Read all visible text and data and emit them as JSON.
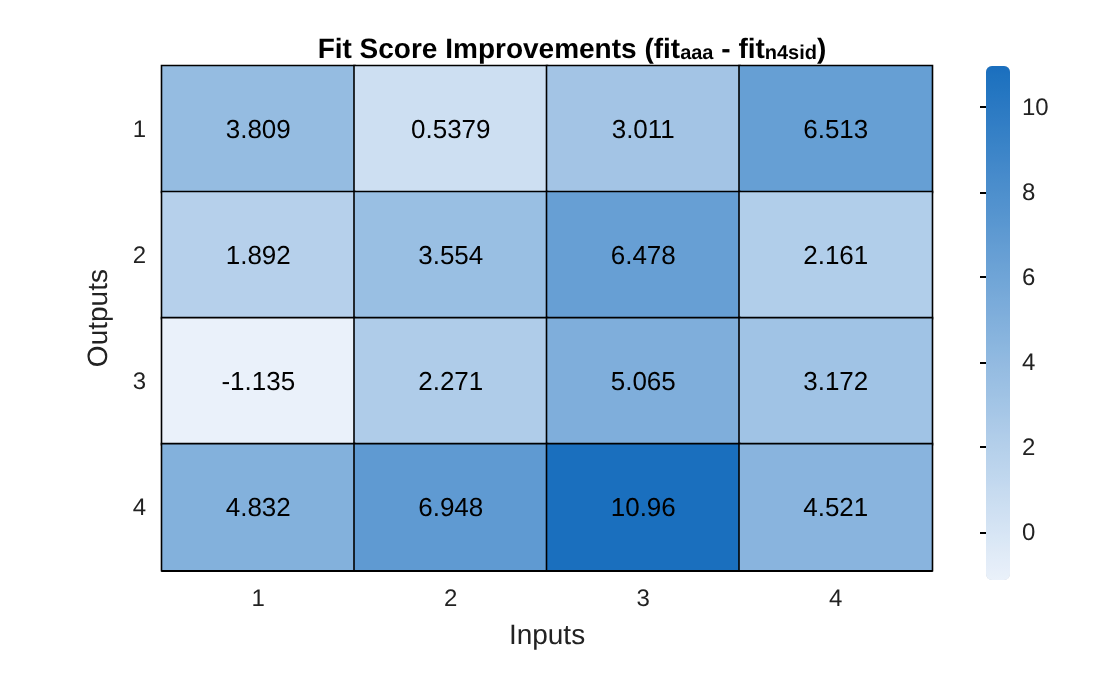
{
  "chart_data": {
    "type": "heatmap",
    "title": "Fit Score Improvements (fit$_{aaa}$ - fit$_{n4sid}$)",
    "xlabel": "Inputs",
    "ylabel": "Outputs",
    "categories": [
      "1",
      "2",
      "3",
      "4"
    ],
    "y_categories": [
      "1",
      "2",
      "3",
      "4"
    ],
    "cells": [
      [
        3.809,
        0.5379,
        3.011,
        6.513
      ],
      [
        1.892,
        3.554,
        6.478,
        2.161
      ],
      [
        -1.135,
        2.271,
        5.065,
        3.172
      ],
      [
        4.832,
        6.948,
        10.96,
        4.521
      ]
    ],
    "clim": [
      -1.135,
      10.96
    ],
    "cticks": [
      0,
      2,
      4,
      6,
      8,
      10
    ],
    "data_labels": true
  }
}
